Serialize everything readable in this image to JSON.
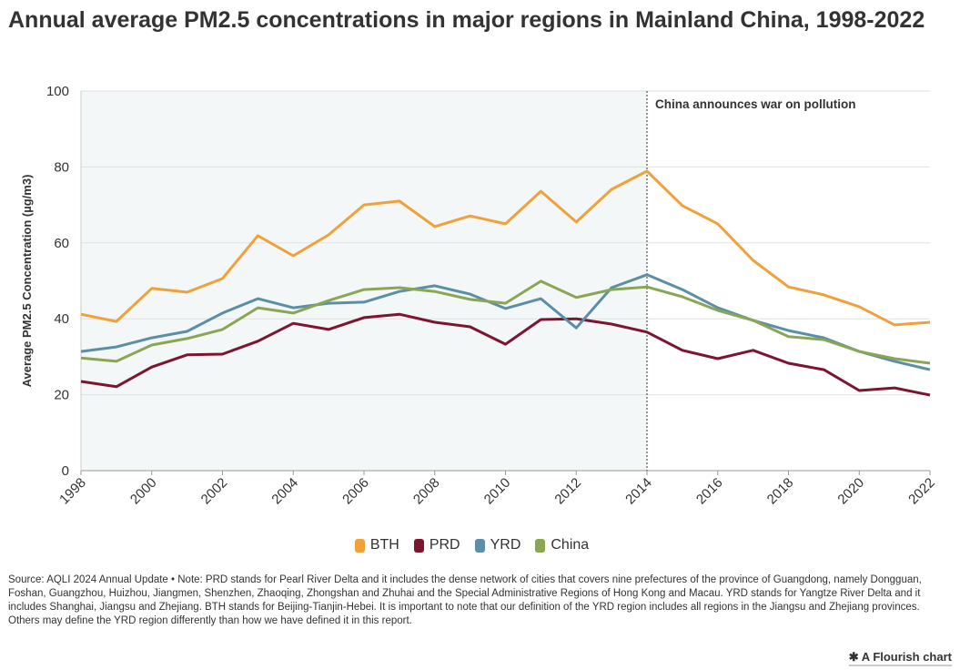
{
  "title": "Annual average PM2.5 concentrations in major regions in Mainland China, 1998-2022",
  "chart_data": {
    "type": "line",
    "title": "Annual average PM2.5 concentrations in major regions in Mainland China, 1998-2022",
    "xlabel": "",
    "ylabel": "Average PM2.5 Concentration (µg/m3)",
    "ylim": [
      0,
      100
    ],
    "xlim": [
      1998,
      2022
    ],
    "yticks": [
      0,
      20,
      40,
      60,
      80,
      100
    ],
    "xticks": [
      1998,
      2000,
      2002,
      2004,
      2006,
      2008,
      2010,
      2012,
      2014,
      2016,
      2018,
      2020,
      2022
    ],
    "grid": true,
    "legend": "bottom",
    "shaded_region": [
      1998,
      2014
    ],
    "annotation": {
      "x": 2014,
      "text": "China announces war on pollution"
    },
    "x": [
      1998,
      1999,
      2000,
      2001,
      2002,
      2003,
      2004,
      2005,
      2006,
      2007,
      2008,
      2009,
      2010,
      2011,
      2012,
      2013,
      2014,
      2015,
      2016,
      2017,
      2018,
      2019,
      2020,
      2021,
      2022
    ],
    "series": [
      {
        "name": "BTH",
        "color": "#f0a13a",
        "values": [
          41.2,
          39.3,
          48,
          47,
          50.6,
          61.9,
          56.6,
          62.1,
          70,
          71,
          64.3,
          67.1,
          65,
          73.6,
          65.5,
          74.1,
          78.9,
          69.8,
          65,
          55.4,
          48.4,
          46.3,
          43.2,
          38.4,
          39.1
        ]
      },
      {
        "name": "PRD",
        "color": "#7d1430",
        "values": [
          23.5,
          22.1,
          27.3,
          30.5,
          30.7,
          34.1,
          38.8,
          37.2,
          40.3,
          41.2,
          39.1,
          37.9,
          33.3,
          39.8,
          40,
          38.6,
          36.5,
          31.7,
          29.5,
          31.7,
          28.3,
          26.6,
          21.1,
          21.8,
          19.9
        ]
      },
      {
        "name": "YRD",
        "color": "#5b8fa8",
        "values": [
          31.4,
          32.6,
          35,
          36.7,
          41.5,
          45.3,
          42.9,
          44.1,
          44.4,
          47.2,
          48.7,
          46.5,
          42.7,
          45.3,
          37.6,
          48.2,
          51.6,
          47.7,
          42.9,
          39.6,
          36.9,
          35,
          31.4,
          28.8,
          26.6
        ]
      },
      {
        "name": "China",
        "color": "#8aa655",
        "values": [
          29.7,
          28.8,
          33.1,
          34.8,
          37.2,
          42.9,
          41.5,
          44.8,
          47.7,
          48.2,
          47.2,
          45.1,
          44.1,
          49.9,
          45.6,
          47.7,
          48.4,
          45.8,
          42.2,
          39.6,
          35.3,
          34.5,
          31.4,
          29.5,
          28.3
        ]
      }
    ]
  },
  "footer": "Source: AQLI 2024 Annual Update • Note: PRD stands for Pearl River Delta and it includes the dense network of cities that covers nine prefectures of the province of Guangdong, namely Dongguan, Foshan, Guangzhou, Huizhou, Jiangmen, Shenzhen, Zhaoqing, Zhongshan and Zhuhai and the Special Administrative Regions of Hong Kong and Macau. YRD stands for Yangtze River Delta and it includes Shanghai, Jiangsu and Zhejiang. BTH stands for Beijing-Tianjin-Hebei. It is important to note that our definition of the YRD region includes all regions in the Jiangsu and Zhejiang provinces. Others may define the YRD region differently than how we have defined it in this report.",
  "brand": "A Flourish chart"
}
